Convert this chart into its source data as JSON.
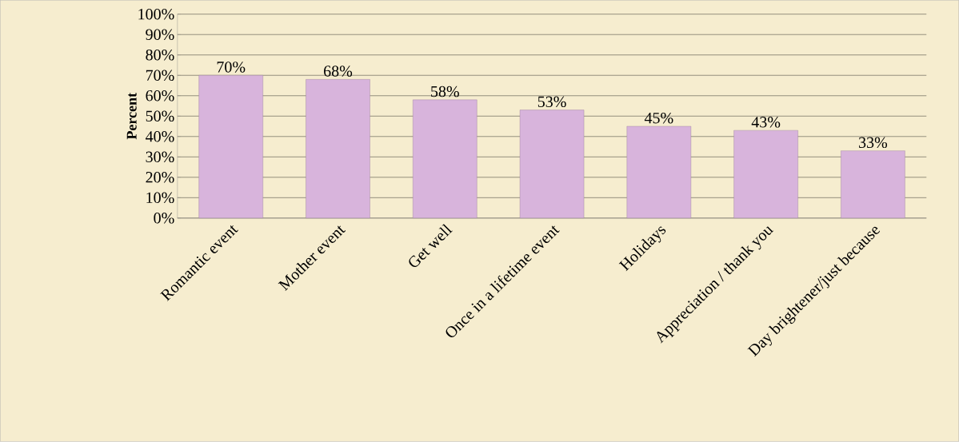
{
  "chart_data": {
    "type": "bar",
    "ylabel": "Percent",
    "categories": [
      "Romantic event",
      "Mother event",
      "Get well",
      "Once in a lifetime event",
      "Holidays",
      "Appreciation / thank you",
      "Day brightener/just because"
    ],
    "values": [
      70,
      68,
      58,
      53,
      45,
      43,
      33
    ],
    "value_labels": [
      "70%",
      "68%",
      "58%",
      "53%",
      "45%",
      "43%",
      "33%"
    ],
    "color": "#d8b4dc",
    "ylim": [
      0,
      100
    ],
    "yticks": [
      {
        "value": 0,
        "label": "0%"
      },
      {
        "value": 10,
        "label": "10%"
      },
      {
        "value": 20,
        "label": "20%"
      },
      {
        "value": 30,
        "label": "30%"
      },
      {
        "value": 40,
        "label": "40%"
      },
      {
        "value": 50,
        "label": "50%"
      },
      {
        "value": 60,
        "label": "60%"
      },
      {
        "value": 70,
        "label": "70%"
      },
      {
        "value": 80,
        "label": "80%"
      },
      {
        "value": 90,
        "label": "90%"
      },
      {
        "value": 100,
        "label": "100%"
      }
    ],
    "grid": "y"
  }
}
